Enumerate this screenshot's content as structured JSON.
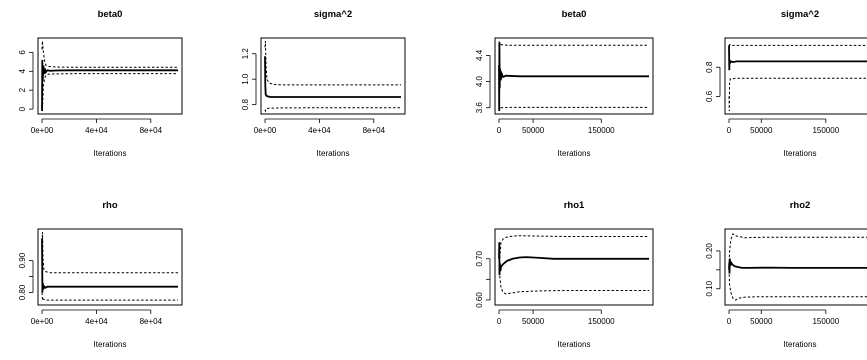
{
  "chart_data": [
    {
      "type": "line",
      "title": "beta0",
      "xlabel": "Iterations",
      "xlim": [
        0,
        100000
      ],
      "ylim": [
        -0.2,
        7.2
      ],
      "xticks": [
        0,
        40000,
        80000
      ],
      "xtick_labels": [
        "0e+00",
        "4e+04",
        "8e+04"
      ],
      "yticks": [
        0,
        2,
        4,
        6
      ],
      "ytick_labels": [
        "0",
        "2",
        "4",
        "6"
      ],
      "series": [
        {
          "style": "solid",
          "x": [
            0,
            200,
            500,
            1000,
            1500,
            2000,
            2800,
            4000,
            6000,
            10000,
            20000,
            40000,
            60000,
            80000,
            100000
          ],
          "y": [
            -0.2,
            5.2,
            3.0,
            4.6,
            3.7,
            4.3,
            3.9,
            4.1,
            4.05,
            4.08,
            4.1,
            4.1,
            4.1,
            4.1,
            4.1
          ]
        },
        {
          "style": "dashed",
          "x": [
            0,
            300,
            1000,
            2000,
            3000,
            5000,
            10000,
            20000,
            50000,
            100000
          ],
          "y": [
            6.3,
            7.2,
            6.0,
            5.0,
            4.6,
            4.5,
            4.45,
            4.43,
            4.42,
            4.42
          ]
        },
        {
          "style": "dashed",
          "x": [
            0,
            300,
            1000,
            2000,
            3000,
            5000,
            10000,
            20000,
            50000,
            100000
          ],
          "y": [
            1.5,
            -0.2,
            2.5,
            3.3,
            3.6,
            3.7,
            3.72,
            3.74,
            3.75,
            3.75
          ]
        }
      ]
    },
    {
      "type": "line",
      "title": "sigma^2",
      "xlabel": "Iterations",
      "xlim": [
        0,
        100000
      ],
      "ylim": [
        0.75,
        1.3
      ],
      "xticks": [
        0,
        40000,
        80000
      ],
      "xtick_labels": [
        "0e+00",
        "4e+04",
        "8e+04"
      ],
      "yticks": [
        0.8,
        1.0,
        1.2
      ],
      "ytick_labels": [
        "0.8",
        "1.0",
        "1.2"
      ],
      "series": [
        {
          "style": "solid",
          "x": [
            0,
            200,
            500,
            1000,
            2000,
            4000,
            10000,
            30000,
            60000,
            100000
          ],
          "y": [
            1.18,
            0.95,
            0.88,
            0.87,
            0.865,
            0.86,
            0.86,
            0.86,
            0.86,
            0.86
          ]
        },
        {
          "style": "dashed",
          "x": [
            0,
            300,
            800,
            1500,
            3000,
            6000,
            12000,
            30000,
            100000
          ],
          "y": [
            1.25,
            1.3,
            1.1,
            1.0,
            0.97,
            0.96,
            0.955,
            0.955,
            0.955
          ]
        },
        {
          "style": "dashed",
          "x": [
            0,
            300,
            800,
            1500,
            3000,
            6000,
            12000,
            30000,
            100000
          ],
          "y": [
            0.76,
            0.75,
            0.765,
            0.77,
            0.772,
            0.773,
            0.774,
            0.775,
            0.775
          ]
        }
      ]
    },
    {
      "type": "line",
      "title": "beta0",
      "xlabel": "Iterations",
      "xlim": [
        0,
        220000
      ],
      "ylim": [
        3.55,
        4.62
      ],
      "xticks": [
        0,
        50000,
        150000
      ],
      "xtick_labels": [
        "0",
        "50000",
        "150000"
      ],
      "yticks": [
        3.6,
        4.0,
        4.4
      ],
      "ytick_labels": [
        "3.6",
        "4.0",
        "4.4"
      ],
      "series": [
        {
          "style": "solid",
          "x": [
            0,
            300,
            600,
            1000,
            1500,
            2500,
            4000,
            6000,
            10000,
            30000,
            80000,
            220000
          ],
          "y": [
            4.25,
            3.55,
            4.6,
            3.9,
            4.2,
            4.02,
            4.12,
            4.07,
            4.09,
            4.08,
            4.08,
            4.08
          ]
        },
        {
          "style": "dashed",
          "x": [
            0,
            500,
            1200,
            2500,
            5000,
            15000,
            220000
          ],
          "y": [
            4.3,
            4.62,
            4.55,
            4.57,
            4.56,
            4.555,
            4.555
          ]
        },
        {
          "style": "dashed",
          "x": [
            0,
            500,
            1200,
            2500,
            5000,
            15000,
            220000
          ],
          "y": [
            3.8,
            3.55,
            3.62,
            3.6,
            3.6,
            3.605,
            3.605
          ]
        }
      ]
    },
    {
      "type": "line",
      "title": "sigma^2",
      "xlabel": "Iterations",
      "xlim": [
        0,
        220000
      ],
      "ylim": [
        0.5,
        0.98
      ],
      "xticks": [
        0,
        50000,
        150000
      ],
      "xtick_labels": [
        "0",
        "50000",
        "150000"
      ],
      "yticks": [
        0.6,
        0.8
      ],
      "ytick_labels": [
        "0.6",
        "0.8"
      ],
      "series": [
        {
          "style": "solid",
          "x": [
            0,
            400,
            800,
            1500,
            3000,
            6000,
            12000,
            40000,
            100000,
            220000
          ],
          "y": [
            0.95,
            0.78,
            0.85,
            0.83,
            0.84,
            0.835,
            0.84,
            0.84,
            0.84,
            0.84
          ]
        },
        {
          "style": "dashed",
          "x": [
            0,
            500,
            1000,
            2000,
            5000,
            10000,
            220000
          ],
          "y": [
            0.9,
            0.96,
            0.95,
            0.955,
            0.95,
            0.95,
            0.95
          ]
        },
        {
          "style": "dashed",
          "x": [
            0,
            500,
            1000,
            2000,
            5000,
            10000,
            220000
          ],
          "y": [
            0.6,
            0.5,
            0.7,
            0.72,
            0.72,
            0.725,
            0.725
          ]
        }
      ]
    },
    {
      "type": "line",
      "title": "rho",
      "xlabel": "Iterations",
      "xlim": [
        0,
        100000
      ],
      "ylim": [
        0.77,
        0.99
      ],
      "xticks": [
        0,
        40000,
        80000
      ],
      "xtick_labels": [
        "0e+00",
        "4e+04",
        "8e+04"
      ],
      "yticks": [
        0.8,
        0.85,
        0.9
      ],
      "ytick_labels": [
        "0.80",
        "",
        "0.90"
      ],
      "series": [
        {
          "style": "solid",
          "x": [
            0,
            300,
            600,
            1000,
            1500,
            2500,
            4000,
            8000,
            20000,
            50000,
            100000
          ],
          "y": [
            0.97,
            0.8,
            0.83,
            0.81,
            0.82,
            0.815,
            0.818,
            0.818,
            0.818,
            0.818,
            0.818
          ]
        },
        {
          "style": "dashed",
          "x": [
            0,
            400,
            800,
            1500,
            3000,
            6000,
            15000,
            100000
          ],
          "y": [
            0.96,
            0.99,
            0.9,
            0.87,
            0.865,
            0.862,
            0.862,
            0.862
          ]
        },
        {
          "style": "dashed",
          "x": [
            0,
            400,
            800,
            1500,
            3000,
            6000,
            15000,
            100000
          ],
          "y": [
            0.8,
            0.775,
            0.78,
            0.778,
            0.776,
            0.776,
            0.776,
            0.776
          ]
        }
      ]
    },
    {
      "type": "line",
      "title": "rho1",
      "xlabel": "Iterations",
      "xlim": [
        0,
        220000
      ],
      "ylim": [
        0.595,
        0.765
      ],
      "xticks": [
        0,
        50000,
        150000
      ],
      "xtick_labels": [
        "0",
        "50000",
        "150000"
      ],
      "yticks": [
        0.6,
        0.65,
        0.7
      ],
      "ytick_labels": [
        "0.60",
        "",
        "0.70"
      ],
      "series": [
        {
          "style": "solid",
          "x": [
            0,
            400,
            800,
            1200,
            2000,
            3000,
            5000,
            8000,
            12000,
            20000,
            30000,
            40000,
            60000,
            80000,
            120000,
            220000
          ],
          "y": [
            0.7,
            0.74,
            0.66,
            0.69,
            0.67,
            0.68,
            0.685,
            0.69,
            0.695,
            0.7,
            0.703,
            0.704,
            0.702,
            0.7,
            0.7,
            0.7
          ]
        },
        {
          "style": "dashed",
          "x": [
            0,
            1000,
            3000,
            6000,
            10000,
            20000,
            30000,
            60000,
            100000,
            220000
          ],
          "y": [
            0.72,
            0.7,
            0.74,
            0.748,
            0.752,
            0.755,
            0.756,
            0.755,
            0.754,
            0.754
          ]
        },
        {
          "style": "dashed",
          "x": [
            0,
            1000,
            3000,
            6000,
            10000,
            20000,
            30000,
            60000,
            100000,
            220000
          ],
          "y": [
            0.68,
            0.66,
            0.63,
            0.618,
            0.615,
            0.617,
            0.62,
            0.622,
            0.623,
            0.623
          ]
        }
      ]
    },
    {
      "type": "line",
      "title": "rho2",
      "xlabel": "Iterations",
      "xlim": [
        0,
        220000
      ],
      "ylim": [
        0.065,
        0.25
      ],
      "xticks": [
        0,
        50000,
        150000
      ],
      "xtick_labels": [
        "0",
        "50000",
        "150000"
      ],
      "yticks": [
        0.1,
        0.15,
        0.2
      ],
      "ytick_labels": [
        "0.10",
        "",
        "0.20"
      ],
      "series": [
        {
          "style": "solid",
          "x": [
            0,
            400,
            800,
            1200,
            2000,
            3000,
            5000,
            8000,
            12000,
            20000,
            30000,
            60000,
            100000,
            220000
          ],
          "y": [
            0.15,
            0.17,
            0.14,
            0.18,
            0.16,
            0.17,
            0.165,
            0.16,
            0.158,
            0.155,
            0.155,
            0.156,
            0.155,
            0.155
          ]
        },
        {
          "style": "dashed",
          "x": [
            0,
            1000,
            3000,
            6000,
            10000,
            15000,
            25000,
            50000,
            100000,
            220000
          ],
          "y": [
            0.16,
            0.2,
            0.23,
            0.245,
            0.24,
            0.238,
            0.235,
            0.236,
            0.236,
            0.236
          ]
        },
        {
          "style": "dashed",
          "x": [
            0,
            1000,
            3000,
            6000,
            10000,
            15000,
            25000,
            50000,
            100000,
            220000
          ],
          "y": [
            0.15,
            0.11,
            0.09,
            0.075,
            0.07,
            0.075,
            0.078,
            0.079,
            0.079,
            0.079
          ]
        }
      ]
    }
  ]
}
